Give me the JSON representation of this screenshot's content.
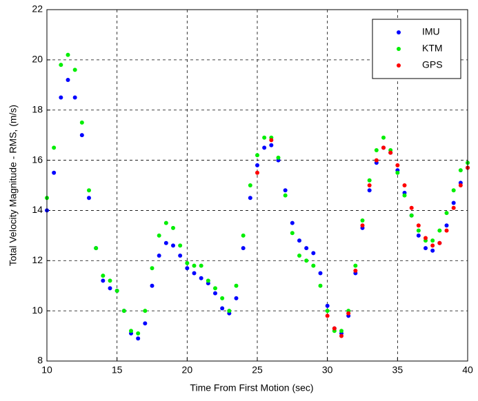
{
  "chart_data": {
    "type": "scatter",
    "x_label": "Time From First Motion (sec)",
    "y_label": "Total Velocity Magnitude - RMS, (m/s)",
    "xlim": [
      10,
      40
    ],
    "xticks": [
      10,
      15,
      20,
      25,
      30,
      35,
      40
    ],
    "ylim": [
      8,
      22
    ],
    "yticks": [
      8,
      10,
      12,
      14,
      16,
      18,
      20,
      22
    ],
    "grid": true,
    "legend": "upper-right",
    "series": [
      {
        "name": "IMU",
        "color": "#0000ff",
        "x": [
          10,
          10.5,
          11,
          11.5,
          12,
          12.5,
          13,
          13.5,
          14,
          14.5,
          15,
          15.5,
          16,
          16.5,
          17,
          17.5,
          18,
          18.5,
          19,
          19.5,
          20,
          20.5,
          21,
          21.5,
          22,
          22.5,
          23,
          23.5,
          24,
          24.5,
          25,
          25.5,
          26,
          26.5,
          27,
          27.5,
          28,
          28.5,
          29,
          29.5,
          30,
          30.5,
          31,
          31.5,
          32,
          32.5,
          33,
          33.5,
          34,
          34.5,
          35,
          35.5,
          36,
          36.5,
          37,
          37.5,
          38,
          38.5,
          39,
          39.5,
          40
        ],
        "values": [
          14.0,
          15.5,
          18.5,
          19.2,
          18.5,
          17.0,
          14.5,
          12.5,
          11.2,
          10.9,
          10.8,
          10.0,
          9.1,
          8.9,
          9.5,
          11.0,
          12.2,
          12.7,
          12.6,
          12.2,
          11.7,
          11.5,
          11.3,
          11.1,
          10.7,
          10.1,
          9.9,
          10.5,
          12.5,
          14.5,
          15.8,
          16.5,
          16.6,
          16.0,
          14.8,
          13.5,
          12.8,
          12.5,
          12.3,
          11.5,
          10.2,
          9.3,
          9.1,
          9.8,
          11.5,
          13.3,
          14.8,
          15.9,
          16.5,
          16.3,
          15.6,
          14.7,
          13.8,
          13.0,
          12.5,
          12.4,
          12.7,
          13.4,
          14.3,
          15.1,
          15.7
        ]
      },
      {
        "name": "KTM",
        "color": "#00ee00",
        "x": [
          10,
          10.5,
          11,
          11.5,
          12,
          12.5,
          13,
          13.5,
          14,
          14.5,
          15,
          15.5,
          16,
          16.5,
          17,
          17.5,
          18,
          18.5,
          19,
          19.5,
          20,
          20.5,
          21,
          21.5,
          22,
          22.5,
          23,
          23.5,
          24,
          24.5,
          25,
          25.5,
          26,
          26.5,
          27,
          27.5,
          28,
          28.5,
          29,
          29.5,
          30,
          30.5,
          31,
          31.5,
          32,
          32.5,
          33,
          33.5,
          34,
          34.5,
          35,
          35.5,
          36,
          36.5,
          37,
          37.5,
          38,
          38.5,
          39,
          39.5,
          40
        ],
        "values": [
          14.5,
          16.5,
          19.8,
          20.2,
          19.6,
          17.5,
          14.8,
          12.5,
          11.4,
          11.2,
          10.8,
          10.0,
          9.2,
          9.1,
          10.0,
          11.7,
          13.0,
          13.5,
          13.3,
          12.6,
          11.9,
          11.8,
          11.8,
          11.2,
          10.9,
          10.5,
          10.0,
          11.0,
          13.0,
          15.0,
          16.2,
          16.9,
          16.9,
          16.1,
          14.6,
          13.1,
          12.2,
          12.0,
          11.8,
          11.0,
          10.0,
          9.2,
          9.2,
          10.0,
          11.8,
          13.6,
          15.2,
          16.4,
          16.9,
          16.4,
          15.5,
          14.6,
          13.8,
          13.2,
          12.8,
          12.8,
          13.2,
          13.9,
          14.8,
          15.6,
          15.9
        ]
      },
      {
        "name": "GPS",
        "color": "#ff0000",
        "x": [
          25,
          26,
          30,
          30.5,
          31,
          31.5,
          32,
          32.5,
          33,
          33.5,
          34,
          34.5,
          35,
          35.5,
          36,
          36.5,
          37,
          37.5,
          38,
          38.5,
          39,
          39.5,
          40
        ],
        "values": [
          15.5,
          16.8,
          9.8,
          9.3,
          9.0,
          9.9,
          11.6,
          13.4,
          15.0,
          16.0,
          16.5,
          16.3,
          15.8,
          15.0,
          14.1,
          13.4,
          12.9,
          12.6,
          12.7,
          13.2,
          14.1,
          15.0,
          15.7
        ]
      }
    ]
  }
}
